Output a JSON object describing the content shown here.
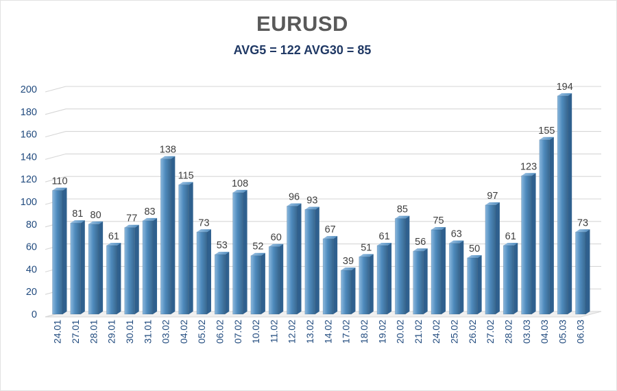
{
  "chart_data": {
    "type": "bar",
    "title": "EURUSD",
    "subtitle": "AVG5 = 122 AVG30 = 85",
    "avg5": 122,
    "avg30": 85,
    "categories": [
      "24.01",
      "27.01",
      "28.01",
      "29.01",
      "30.01",
      "31.01",
      "03.02",
      "04.02",
      "05.02",
      "06.02",
      "07.02",
      "10.02",
      "11.02",
      "12.02",
      "13.02",
      "14.02",
      "17.02",
      "18.02",
      "19.02",
      "20.02",
      "21.02",
      "24.02",
      "25.02",
      "26.02",
      "27.02",
      "28.02",
      "03.03",
      "04.03",
      "05.03",
      "06.03"
    ],
    "values": [
      110,
      81,
      80,
      61,
      77,
      83,
      138,
      115,
      73,
      53,
      108,
      52,
      60,
      96,
      93,
      67,
      39,
      51,
      61,
      85,
      56,
      75,
      63,
      50,
      97,
      61,
      123,
      155,
      194,
      73
    ],
    "xlabel": "",
    "ylabel": "",
    "ylim": [
      0,
      200
    ],
    "ytick_step": 20,
    "grid": true,
    "legend": "none",
    "style": "3d-bar",
    "colors": {
      "bar_light": "#8ab8de",
      "bar_mid": "#4e8abc",
      "bar_dark": "#38678f",
      "bar_side": "#2f608e",
      "bar_top": "#9cc3e5",
      "grid": "#d6d6d6",
      "floor": "#f0f0f0",
      "title": "#595959",
      "subtitle": "#1f3864",
      "axis_labels": "#1f497d",
      "value_labels": "#3d3d3d"
    }
  }
}
